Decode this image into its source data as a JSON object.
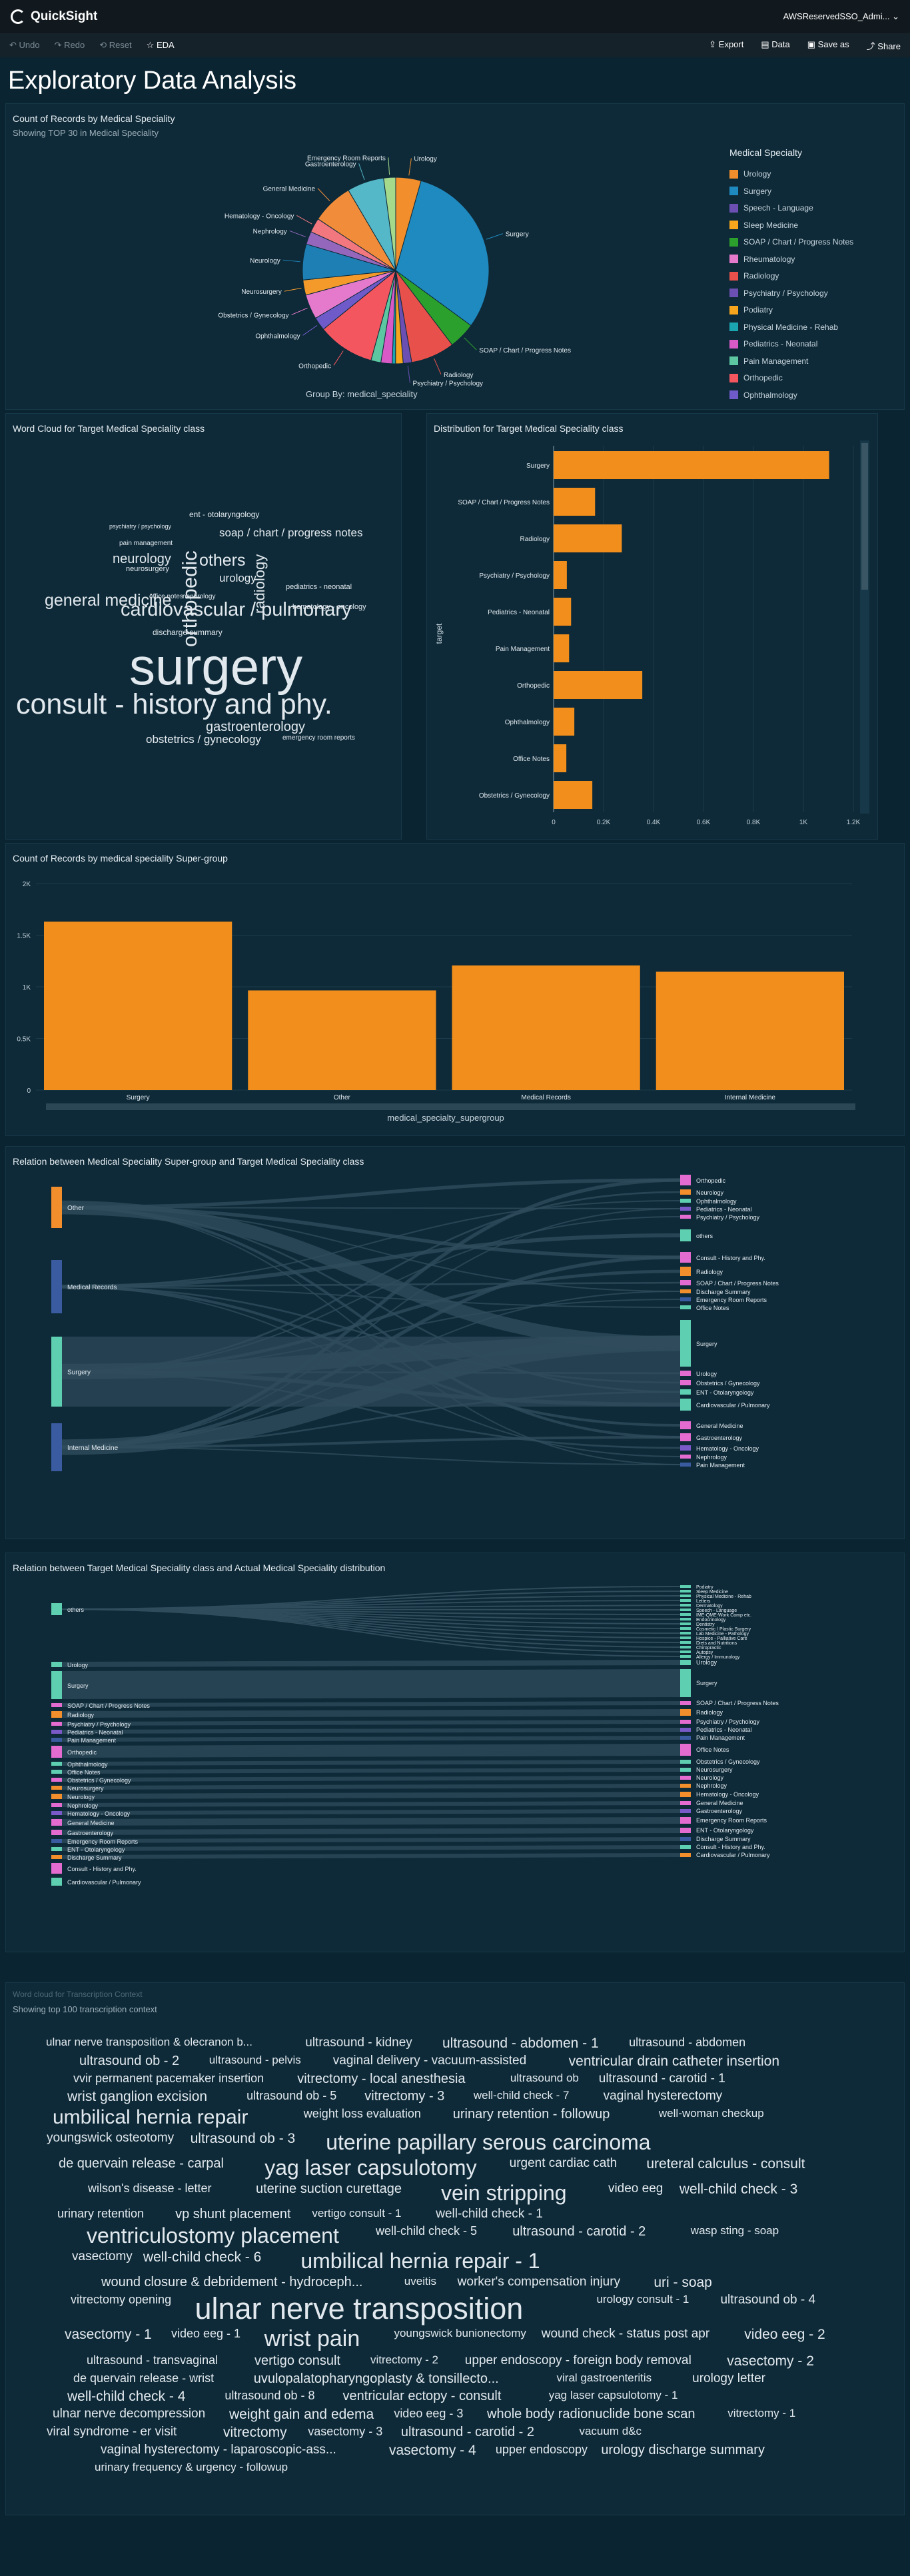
{
  "app": {
    "name": "QuickSight",
    "user": "AWSReservedSSO_Admi..."
  },
  "toolbar": {
    "undo": "Undo",
    "redo": "Redo",
    "reset": "Reset",
    "title": "EDA",
    "export": "Export",
    "data": "Data",
    "save_as": "Save as",
    "share": "Share"
  },
  "page": {
    "title": "Exploratory Data Analysis"
  },
  "pie": {
    "title": "Count of Records by Medical Speciality",
    "subtitle": "Showing TOP 30 in Medical Speciality",
    "group_by": "Group By: medical_speciality",
    "legend_title": "Medical Specialty",
    "legend": [
      "Urology",
      "Surgery",
      "Speech - Language",
      "Sleep Medicine",
      "SOAP / Chart / Progress Notes",
      "Rheumatology",
      "Radiology",
      "Psychiatry / Psychology",
      "Podiatry",
      "Physical Medicine - Rehab",
      "Pediatrics - Neonatal",
      "Pain Management",
      "Orthopedic",
      "Ophthalmology"
    ],
    "labels": [
      "Urology",
      "Surgery",
      "SOAP / Chart / Progress Notes",
      "Radiology",
      "Psychiatry / Psychology",
      "Orthopedic",
      "Ophthalmology",
      "Obstetrics / Gynecology",
      "Neurosurgery",
      "Neurology",
      "Nephrology",
      "Hematology - Oncology",
      "General Medicine",
      "Gastroenterology",
      "Emergency Room Reports"
    ]
  },
  "pie_data": {
    "type": "pie",
    "slices": [
      {
        "name": "Urology",
        "value": 158,
        "color": "#f28e2b"
      },
      {
        "name": "Surgery",
        "value": 1103,
        "color": "#1f8ac0"
      },
      {
        "name": "SOAP / Chart / Progress Notes",
        "value": 166,
        "color": "#2ca02c"
      },
      {
        "name": "Radiology",
        "value": 273,
        "color": "#e8514b"
      },
      {
        "name": "Psychiatry / Psychology",
        "value": 53,
        "color": "#6b4fb3"
      },
      {
        "name": "Podiatry",
        "value": 47,
        "color": "#f7a51c"
      },
      {
        "name": "Physical Medicine - Rehab",
        "value": 21,
        "color": "#1aa5b0"
      },
      {
        "name": "Pediatrics - Neonatal",
        "value": 70,
        "color": "#d85ac7"
      },
      {
        "name": "Pain Management",
        "value": 62,
        "color": "#5cc7a0"
      },
      {
        "name": "Orthopedic",
        "value": 355,
        "color": "#f4565f"
      },
      {
        "name": "Ophthalmology",
        "value": 83,
        "color": "#6e5ac9"
      },
      {
        "name": "Obstetrics / Gynecology",
        "value": 155,
        "color": "#e57acd"
      },
      {
        "name": "Neurosurgery",
        "value": 94,
        "color": "#f49a2b"
      },
      {
        "name": "Neurology",
        "value": 223,
        "color": "#1e7fb5"
      },
      {
        "name": "Nephrology",
        "value": 81,
        "color": "#9467bd"
      },
      {
        "name": "Hematology - Oncology",
        "value": 90,
        "color": "#f2777e"
      },
      {
        "name": "General Medicine",
        "value": 259,
        "color": "#f08c3a"
      },
      {
        "name": "Gastroenterology",
        "value": 230,
        "color": "#55b8c8"
      },
      {
        "name": "Emergency Room Reports",
        "value": 75,
        "color": "#a5d98c"
      }
    ]
  },
  "wordcloud1": {
    "title": "Word Cloud for Target Medical Speciality class",
    "words": [
      "ent - otolaryngology",
      "psychiatry / psychology",
      "soap / chart / progress notes",
      "pain management",
      "neurology",
      "others",
      "neurosurgery",
      "orthopedic",
      "urology",
      "radiology",
      "pediatrics - neonatal",
      "general medicine",
      "office notes",
      "nephrology",
      "hematology - oncology",
      "cardiovascular / pulmonary",
      "discharge summary",
      "surgery",
      "consult - history and phy.",
      "gastroenterology",
      "obstetrics / gynecology",
      "emergency room reports"
    ]
  },
  "hbar": {
    "title": "Distribution for Target Medical Speciality class",
    "ylabel": "target",
    "ticks": [
      "0",
      "0.2K",
      "0.4K",
      "0.6K",
      "0.8K",
      "1K",
      "1.2K"
    ]
  },
  "chart_data": [
    {
      "type": "bar",
      "orientation": "horizontal",
      "title": "Distribution for Target Medical Speciality class",
      "categories": [
        "Surgery",
        "SOAP / Chart / Progress Notes",
        "Radiology",
        "Psychiatry / Psychology",
        "Pediatrics - Neonatal",
        "Pain Management",
        "Orthopedic",
        "Ophthalmology",
        "Office Notes",
        "Obstetrics / Gynecology"
      ],
      "values": [
        1103,
        166,
        273,
        53,
        70,
        62,
        355,
        83,
        51,
        155
      ],
      "xlim": [
        0,
        1200
      ],
      "ylabel": "target"
    },
    {
      "type": "bar",
      "title": "Count of Records by medical speciality Super-group",
      "categories": [
        "Surgery",
        "Other",
        "Medical Records",
        "Internal Medicine"
      ],
      "values": [
        1631,
        965,
        1207,
        1146
      ],
      "ylim": [
        0,
        2000
      ],
      "yticks": [
        "0",
        "0.5K",
        "1K",
        "1.5K",
        "2K"
      ],
      "xlabel": "medical_specialty_supergroup"
    }
  ],
  "vbar": {
    "title": "Count of Records by medical speciality Super-group",
    "yticks": [
      "0",
      "0.5K",
      "1K",
      "1.5K",
      "2K"
    ],
    "xlabel": "medical_specialty_supergroup"
  },
  "sankey1": {
    "title": "Relation between Medical Speciality Super-group and Target Medical Speciality class",
    "left": [
      {
        "label": "Other",
        "color": "#f28e2b"
      },
      {
        "label": "Medical Records",
        "color": "#3a5ba0"
      },
      {
        "label": "Surgery",
        "color": "#5ecfb0"
      },
      {
        "label": "Internal Medicine",
        "color": "#3a5ba0"
      }
    ],
    "right": [
      {
        "label": "Orthopedic",
        "color": "#e46bd0"
      },
      {
        "label": "Neurology",
        "color": "#f28e2b"
      },
      {
        "label": "Ophthalmology",
        "color": "#5ecfb0"
      },
      {
        "label": "Pediatrics - Neonatal",
        "color": "#7a5ac9"
      },
      {
        "label": "Psychiatry / Psychology",
        "color": "#e46bd0"
      },
      {
        "label": "others",
        "color": "#5ecfb0"
      },
      {
        "label": "Consult - History and Phy.",
        "color": "#e46bd0"
      },
      {
        "label": "Radiology",
        "color": "#f28e2b"
      },
      {
        "label": "SOAP / Chart / Progress Notes",
        "color": "#e46bd0"
      },
      {
        "label": "Discharge Summary",
        "color": "#f28e2b"
      },
      {
        "label": "Emergency Room Reports",
        "color": "#3a5ba0"
      },
      {
        "label": "Office Notes",
        "color": "#5ecfb0"
      },
      {
        "label": "Surgery",
        "color": "#5ecfb0"
      },
      {
        "label": "Urology",
        "color": "#e46bd0"
      },
      {
        "label": "Obstetrics / Gynecology",
        "color": "#e46bd0"
      },
      {
        "label": "ENT - Otolaryngology",
        "color": "#5ecfb0"
      },
      {
        "label": "Cardiovascular / Pulmonary",
        "color": "#5ecfb0"
      },
      {
        "label": "General Medicine",
        "color": "#e46bd0"
      },
      {
        "label": "Gastroenterology",
        "color": "#e46bd0"
      },
      {
        "label": "Hematology - Oncology",
        "color": "#7a5ac9"
      },
      {
        "label": "Nephrology",
        "color": "#e46bd0"
      },
      {
        "label": "Pain Management",
        "color": "#3a5ba0"
      }
    ]
  },
  "sankey2": {
    "title": "Relation between Target Medical Speciality class and Actual Medical Speciality distribution",
    "left": [
      "others",
      "Urology",
      "Surgery",
      "SOAP / Chart / Progress Notes",
      "Radiology",
      "Psychiatry / Psychology",
      "Pediatrics - Neonatal",
      "Pain Management",
      "Orthopedic",
      "Ophthalmology",
      "Office Notes",
      "Obstetrics / Gynecology",
      "Neurosurgery",
      "Neurology",
      "Nephrology",
      "Hematology - Oncology",
      "General Medicine",
      "Gastroenterology",
      "Emergency Room Reports",
      "ENT - Otolaryngology",
      "Discharge Summary",
      "Consult - History and Phy.",
      "Cardiovascular / Pulmonary"
    ],
    "right": [
      "Podiatry",
      "Sleep Medicine",
      "Physical Medicine - Rehab",
      "Letters",
      "Dermatology",
      "Speech - Language",
      "IME-QME-Work Comp etc.",
      "Endocrinology",
      "Dentistry",
      "Cosmetic / Plastic Surgery",
      "Lab Medicine - Pathology",
      "Hospice - Palliative Care",
      "Diets and Nutritions",
      "Chiropractic",
      "Autopsy",
      "Allergy / Immunology",
      "Urology",
      "Surgery",
      "SOAP / Chart / Progress Notes",
      "Radiology",
      "Psychiatry / Psychology",
      "Pediatrics - Neonatal",
      "Pain Management",
      "Office Notes",
      "Obstetrics / Gynecology",
      "Neurosurgery",
      "Neurology",
      "Nephrology",
      "Hematology - Oncology",
      "General Medicine",
      "Gastroenterology",
      "Emergency Room Reports",
      "ENT - Otolaryngology",
      "Discharge Summary",
      "Consult - History and Phy.",
      "Cardiovascular / Pulmonary"
    ]
  },
  "wordcloud2": {
    "title": "Word cloud for Transcription Context",
    "subtitle": "Showing top 100 transcription context",
    "words": [
      "ulnar nerve transposition & olecranon b...",
      "ultrasound - kidney",
      "ultrasound - abdomen - 1",
      "ultrasound - abdomen",
      "ultrasound ob - 2",
      "ultrasound - pelvis",
      "vaginal delivery - vacuum-assisted",
      "ventricular drain catheter insertion",
      "vvir permanent pacemaker insertion",
      "vitrectomy - local anesthesia",
      "ultrasound ob",
      "ultrasound - carotid - 1",
      "wrist ganglion excision",
      "ultrasound ob - 5",
      "vitrectomy - 3",
      "well-child check - 7",
      "vaginal hysterectomy",
      "umbilical hernia repair",
      "weight loss evaluation",
      "urinary retention - followup",
      "well-woman checkup",
      "youngswick osteotomy",
      "ultrasound ob - 3",
      "uterine papillary serous carcinoma",
      "de quervain release - carpal",
      "yag laser capsulotomy",
      "urgent cardiac cath",
      "ureteral calculus - consult",
      "wilson's disease - letter",
      "uterine suction curettage",
      "vein stripping",
      "video eeg",
      "well-child check - 3",
      "urinary retention",
      "vp shunt placement",
      "vertigo consult - 1",
      "well-child check - 1",
      "ventriculostomy placement",
      "well-child check - 5",
      "ultrasound - carotid - 2",
      "wasp sting - soap",
      "vasectomy",
      "well-child check - 6",
      "umbilical hernia repair - 1",
      "wound closure & debridement - hydroceph...",
      "uveitis",
      "worker's compensation injury",
      "uri - soap",
      "vitrectomy opening",
      "ulnar nerve transposition",
      "urology consult - 1",
      "ultrasound ob - 4",
      "vasectomy - 1",
      "video eeg - 1",
      "wrist pain",
      "youngswick bunionectomy",
      "wound check - status post apr",
      "video eeg - 2",
      "ultrasound - transvaginal",
      "vertigo consult",
      "vitrectomy - 2",
      "upper endoscopy - foreign body removal",
      "vasectomy - 2",
      "de quervain release - wrist",
      "uvulopalatopharyngoplasty & tonsillecto...",
      "viral gastroenteritis",
      "urology letter",
      "well-child check - 4",
      "ultrasound ob - 8",
      "ventricular ectopy - consult",
      "yag laser capsulotomy - 1",
      "ulnar nerve decompression",
      "weight gain and edema",
      "video eeg - 3",
      "whole body radionuclide bone scan",
      "vitrectomy - 1",
      "viral syndrome - er visit",
      "vitrectomy",
      "vasectomy - 3",
      "ultrasound - carotid - 2",
      "vacuum d&c",
      "vaginal hysterectomy - laparoscopic-ass...",
      "vasectomy - 4",
      "upper endoscopy",
      "urology discharge summary",
      "urinary frequency & urgency - followup"
    ]
  }
}
